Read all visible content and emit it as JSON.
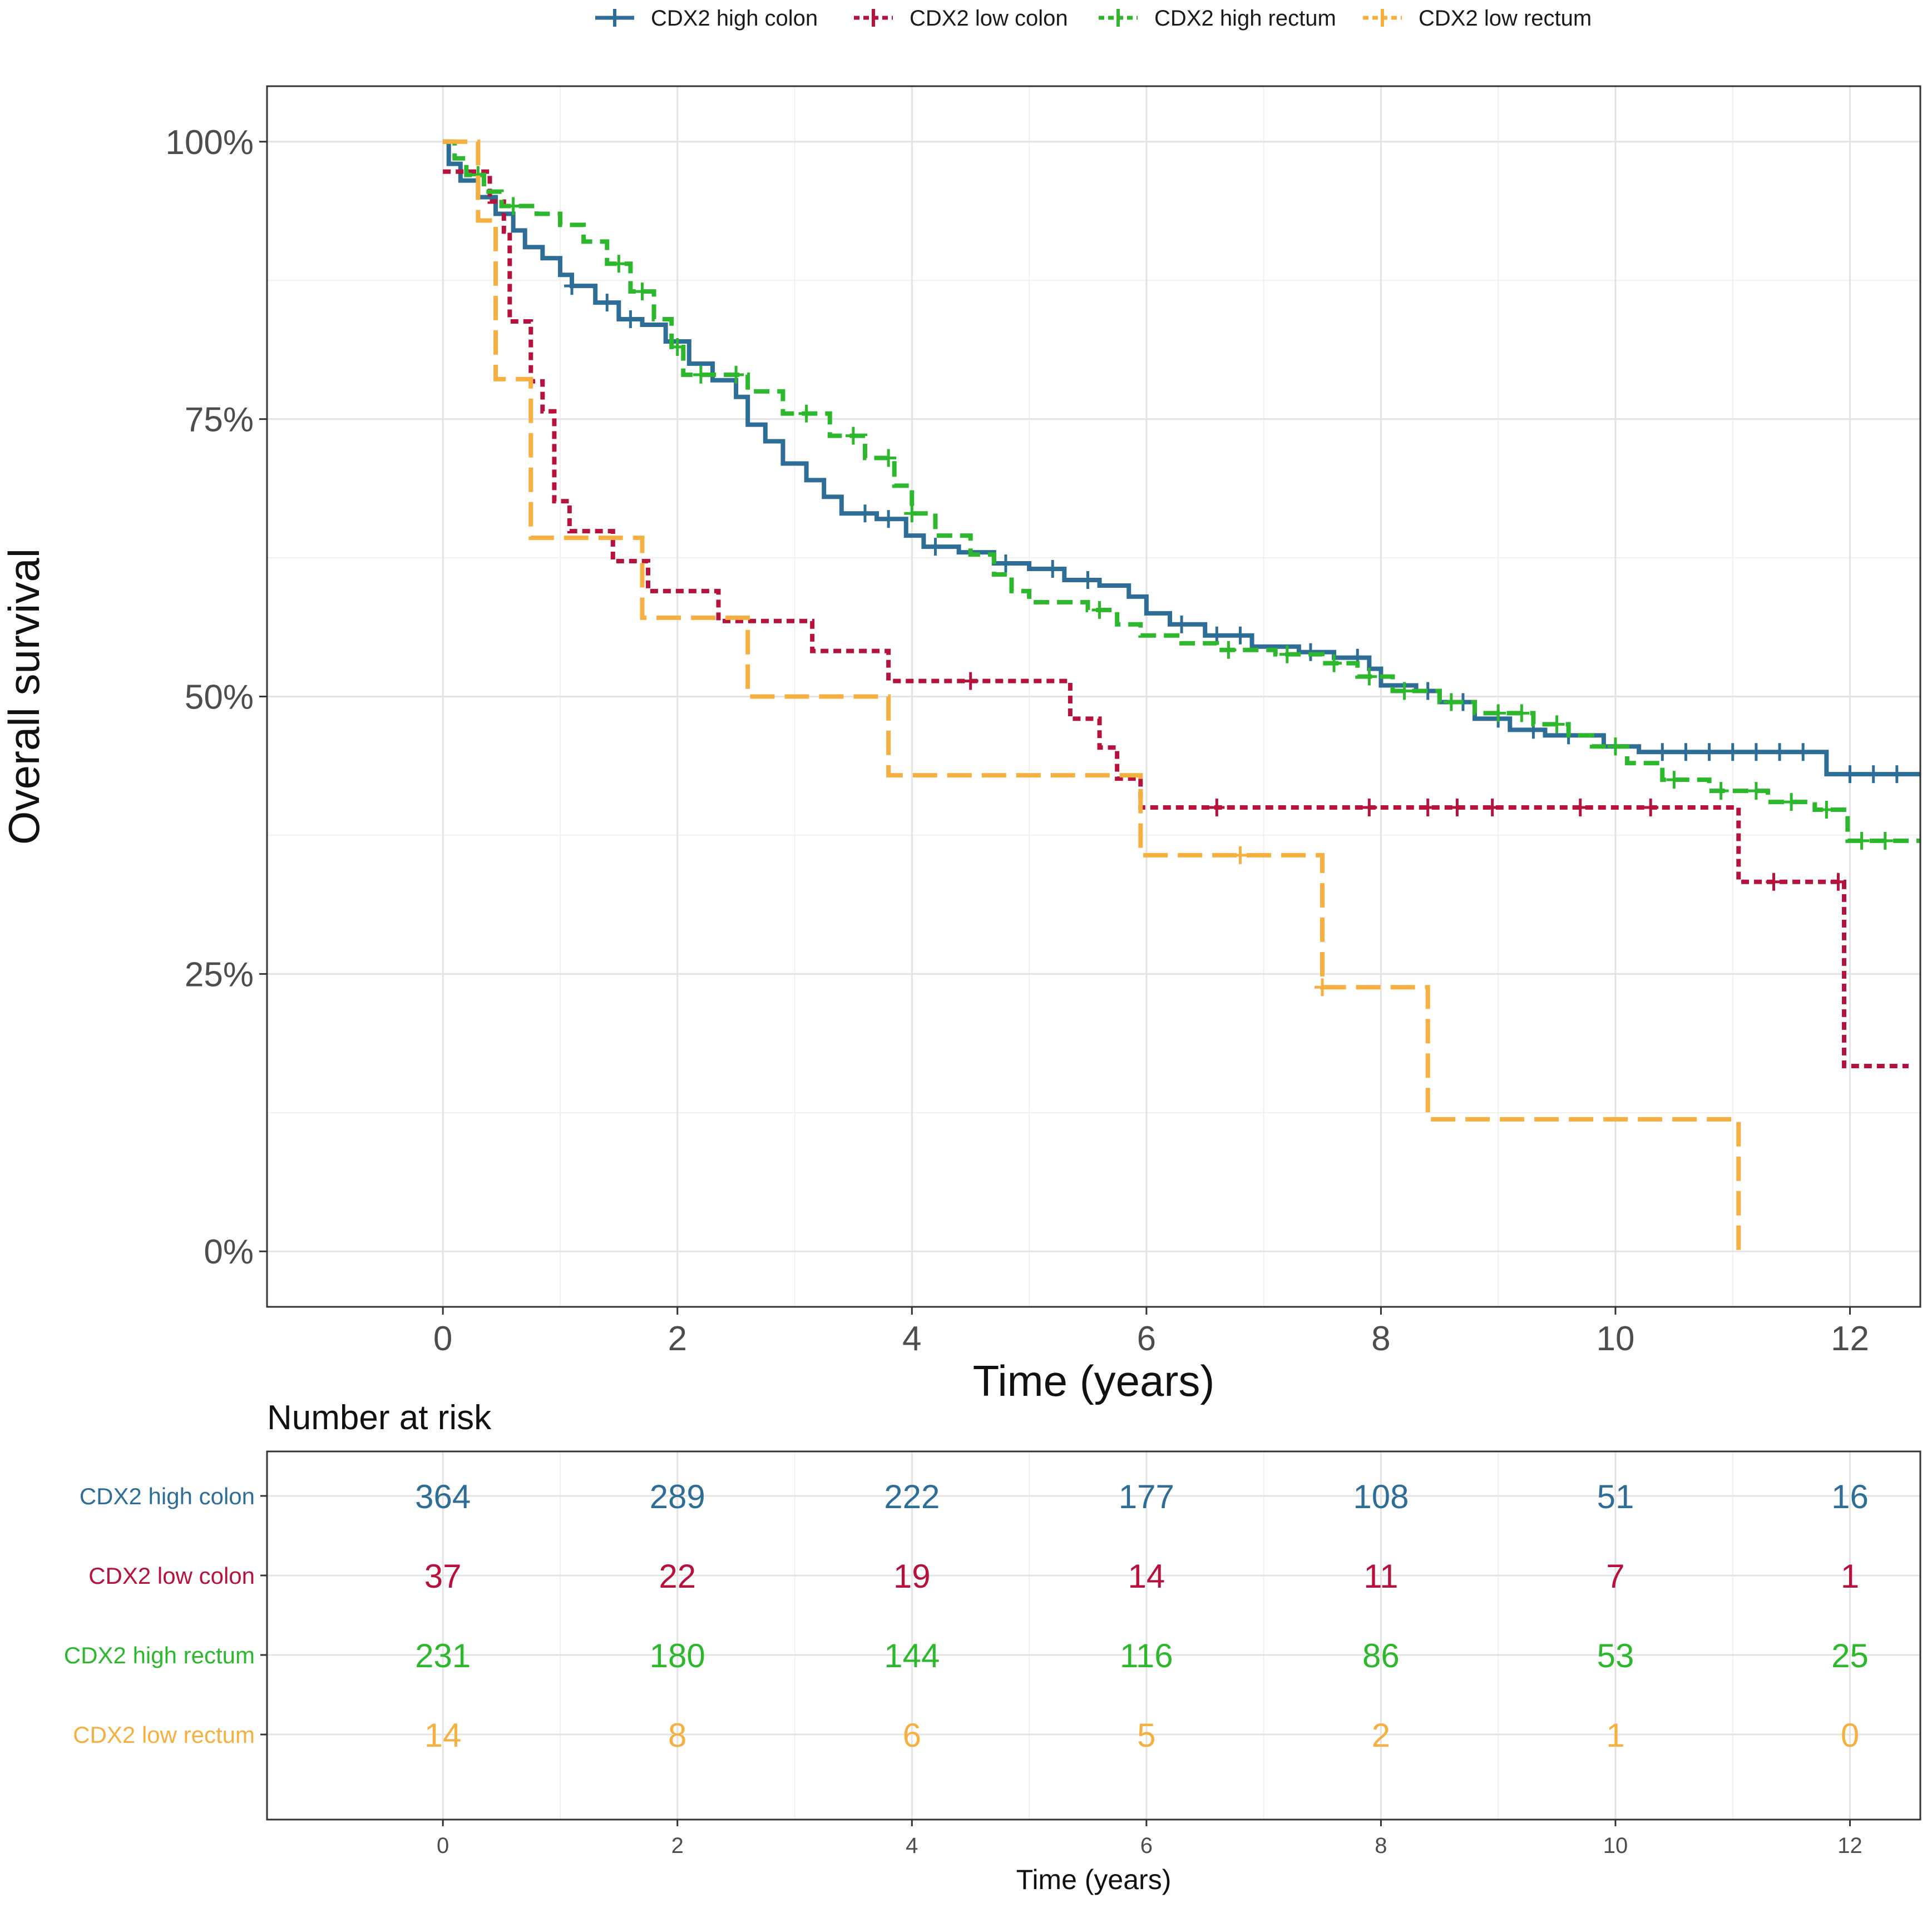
{
  "chart_data": {
    "type": "line",
    "subtype": "kaplan-meier",
    "xlabel": "Time (years)",
    "ylabel": "Overall survival",
    "xlim": [
      -1.5,
      12.6
    ],
    "ylim": [
      -0.05,
      1.05
    ],
    "x_ticks": [
      0,
      2,
      4,
      6,
      8,
      10,
      12
    ],
    "x_tick_labels": [
      "0",
      "2",
      "4",
      "6",
      "8",
      "10",
      "12"
    ],
    "y_ticks": [
      0,
      0.25,
      0.5,
      0.75,
      1.0
    ],
    "y_tick_labels": [
      "0%",
      "25%",
      "50%",
      "75%",
      "100%"
    ],
    "grid": true,
    "legend_position": "top",
    "series": [
      {
        "name": "CDX2 high colon",
        "color": "#2e6e96",
        "dash": "solid",
        "steps": [
          [
            0,
            1.0
          ],
          [
            0.05,
            0.98
          ],
          [
            0.15,
            0.965
          ],
          [
            0.3,
            0.95
          ],
          [
            0.45,
            0.935
          ],
          [
            0.6,
            0.92
          ],
          [
            0.7,
            0.905
          ],
          [
            0.85,
            0.895
          ],
          [
            1.0,
            0.88
          ],
          [
            1.1,
            0.87
          ],
          [
            1.3,
            0.855
          ],
          [
            1.5,
            0.84
          ],
          [
            1.7,
            0.835
          ],
          [
            1.9,
            0.82
          ],
          [
            2.1,
            0.8
          ],
          [
            2.3,
            0.785
          ],
          [
            2.5,
            0.77
          ],
          [
            2.6,
            0.745
          ],
          [
            2.75,
            0.73
          ],
          [
            2.9,
            0.71
          ],
          [
            3.1,
            0.695
          ],
          [
            3.25,
            0.68
          ],
          [
            3.4,
            0.665
          ],
          [
            3.7,
            0.66
          ],
          [
            3.95,
            0.645
          ],
          [
            4.1,
            0.635
          ],
          [
            4.4,
            0.63
          ],
          [
            4.7,
            0.62
          ],
          [
            5.0,
            0.615
          ],
          [
            5.3,
            0.605
          ],
          [
            5.6,
            0.6
          ],
          [
            5.85,
            0.59
          ],
          [
            6.0,
            0.575
          ],
          [
            6.2,
            0.565
          ],
          [
            6.5,
            0.555
          ],
          [
            6.9,
            0.545
          ],
          [
            7.3,
            0.54
          ],
          [
            7.6,
            0.535
          ],
          [
            7.9,
            0.525
          ],
          [
            8.0,
            0.51
          ],
          [
            8.3,
            0.505
          ],
          [
            8.5,
            0.495
          ],
          [
            8.8,
            0.48
          ],
          [
            9.1,
            0.47
          ],
          [
            9.4,
            0.465
          ],
          [
            9.9,
            0.455
          ],
          [
            10.2,
            0.45
          ],
          [
            11.78,
            0.45
          ],
          [
            11.8,
            0.43
          ],
          [
            12.6,
            0.43
          ]
        ],
        "censors": [
          1.1,
          1.4,
          1.6,
          3.6,
          3.8,
          4.2,
          4.8,
          5.2,
          5.5,
          6.3,
          6.6,
          6.8,
          7.4,
          7.8,
          8.4,
          8.7,
          9.0,
          9.3,
          9.6,
          10.0,
          10.4,
          10.6,
          10.8,
          11.0,
          11.2,
          11.4,
          11.6,
          12.0,
          12.2,
          12.4
        ]
      },
      {
        "name": "CDX2 low colon",
        "color": "#b5123e",
        "dash": "dotted",
        "steps": [
          [
            0,
            0.973
          ],
          [
            0.4,
            0.946
          ],
          [
            0.52,
            0.919
          ],
          [
            0.57,
            0.838
          ],
          [
            0.75,
            0.784
          ],
          [
            0.85,
            0.757
          ],
          [
            0.95,
            0.676
          ],
          [
            1.08,
            0.649
          ],
          [
            1.45,
            0.622
          ],
          [
            1.75,
            0.595
          ],
          [
            2.35,
            0.568
          ],
          [
            3.15,
            0.541
          ],
          [
            3.8,
            0.514
          ],
          [
            5.35,
            0.48
          ],
          [
            5.6,
            0.454
          ],
          [
            5.75,
            0.426
          ],
          [
            5.95,
            0.4
          ],
          [
            11.05,
            0.333
          ],
          [
            11.95,
            0.167
          ],
          [
            12.5,
            0.167
          ]
        ],
        "censors": [
          4.5,
          6.6,
          7.9,
          8.4,
          8.65,
          8.95,
          9.7,
          10.3,
          11.35,
          11.9
        ]
      },
      {
        "name": "CDX2 high rectum",
        "color": "#2db72d",
        "dash": "dashed",
        "steps": [
          [
            0,
            1.0
          ],
          [
            0.1,
            0.985
          ],
          [
            0.2,
            0.97
          ],
          [
            0.35,
            0.955
          ],
          [
            0.5,
            0.942
          ],
          [
            0.8,
            0.935
          ],
          [
            1.0,
            0.925
          ],
          [
            1.2,
            0.91
          ],
          [
            1.4,
            0.89
          ],
          [
            1.6,
            0.865
          ],
          [
            1.8,
            0.84
          ],
          [
            1.95,
            0.815
          ],
          [
            2.05,
            0.79
          ],
          [
            2.6,
            0.775
          ],
          [
            2.9,
            0.755
          ],
          [
            3.3,
            0.735
          ],
          [
            3.6,
            0.715
          ],
          [
            3.85,
            0.69
          ],
          [
            4.0,
            0.665
          ],
          [
            4.2,
            0.645
          ],
          [
            4.5,
            0.628
          ],
          [
            4.7,
            0.61
          ],
          [
            4.85,
            0.595
          ],
          [
            5.0,
            0.585
          ],
          [
            5.5,
            0.578
          ],
          [
            5.75,
            0.565
          ],
          [
            5.95,
            0.555
          ],
          [
            6.3,
            0.548
          ],
          [
            6.6,
            0.542
          ],
          [
            7.1,
            0.538
          ],
          [
            7.5,
            0.53
          ],
          [
            7.8,
            0.518
          ],
          [
            8.1,
            0.505
          ],
          [
            8.5,
            0.495
          ],
          [
            8.8,
            0.485
          ],
          [
            9.3,
            0.475
          ],
          [
            9.6,
            0.465
          ],
          [
            9.8,
            0.455
          ],
          [
            10.1,
            0.44
          ],
          [
            10.4,
            0.425
          ],
          [
            10.8,
            0.415
          ],
          [
            11.3,
            0.405
          ],
          [
            11.7,
            0.398
          ],
          [
            11.98,
            0.37
          ],
          [
            12.6,
            0.37
          ]
        ],
        "censors": [
          0.3,
          0.6,
          1.5,
          1.7,
          2.0,
          2.2,
          2.5,
          3.1,
          3.5,
          3.8,
          4.0,
          5.6,
          6.7,
          7.2,
          7.6,
          7.9,
          8.2,
          8.6,
          9.0,
          9.2,
          9.5,
          10.0,
          10.5,
          10.9,
          11.2,
          11.5,
          11.8,
          12.1,
          12.3
        ]
      },
      {
        "name": "CDX2 low rectum",
        "color": "#f5b041",
        "dash": "longdash",
        "steps": [
          [
            0,
            1.0
          ],
          [
            0.3,
            0.929
          ],
          [
            0.45,
            0.786
          ],
          [
            0.75,
            0.643
          ],
          [
            1.7,
            0.571
          ],
          [
            2.6,
            0.5
          ],
          [
            3.8,
            0.429
          ],
          [
            5.95,
            0.357
          ],
          [
            7.5,
            0.238
          ],
          [
            8.4,
            0.119
          ],
          [
            11.05,
            0.0
          ]
        ],
        "censors": [
          6.8,
          7.5
        ]
      }
    ],
    "risk_table": {
      "title": "Number at risk",
      "xlabel": "Time (years)",
      "times": [
        0,
        2,
        4,
        6,
        8,
        10,
        12
      ],
      "time_labels": [
        "0",
        "2",
        "4",
        "6",
        "8",
        "10",
        "12"
      ],
      "rows": [
        {
          "label": "CDX2 high colon",
          "color": "#2e6e96",
          "counts": [
            "364",
            "289",
            "222",
            "177",
            "108",
            "51",
            "16"
          ]
        },
        {
          "label": "CDX2 low colon",
          "color": "#b5123e",
          "counts": [
            "37",
            "22",
            "19",
            "14",
            "11",
            "7",
            "1"
          ]
        },
        {
          "label": "CDX2 high rectum",
          "color": "#2db72d",
          "counts": [
            "231",
            "180",
            "144",
            "116",
            "86",
            "53",
            "25"
          ]
        },
        {
          "label": "CDX2 low rectum",
          "color": "#f5b041",
          "counts": [
            "14",
            "8",
            "6",
            "5",
            "2",
            "1",
            "0"
          ]
        }
      ]
    }
  }
}
